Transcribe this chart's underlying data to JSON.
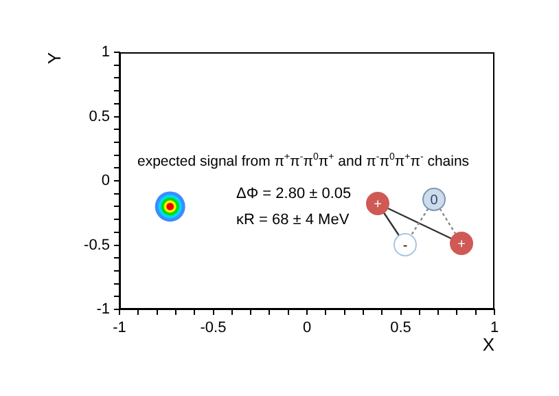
{
  "chart_data": {
    "type": "bubble",
    "xlabel": "X",
    "ylabel": "Y",
    "x": [
      -0.73
    ],
    "series": [
      {
        "color": "#3d8cff",
        "values": [
          -0.2
        ],
        "sizes": [
          1
        ]
      },
      {
        "color": "#00d8ff",
        "values": [
          -0.2
        ],
        "sizes": [
          0.6
        ]
      },
      {
        "color": "#00dd00",
        "values": [
          -0.2
        ],
        "sizes": [
          0.35
        ]
      },
      {
        "color": "#ffee00",
        "values": [
          -0.2
        ],
        "sizes": [
          0.17
        ]
      },
      {
        "color": "#ee0000",
        "values": [
          -0.2
        ],
        "sizes": [
          0.06
        ]
      }
    ],
    "xlim": [
      -1,
      1
    ],
    "ylim": [
      -1,
      1
    ],
    "xticks": [
      -1,
      {
        "value": -0.9,
        "label": null
      },
      {
        "value": -0.8,
        "label": null
      },
      {
        "value": -0.7,
        "label": null
      },
      {
        "value": -0.6,
        "label": null
      },
      -0.5,
      {
        "value": -0.4,
        "label": null
      },
      {
        "value": -0.3,
        "label": null
      },
      {
        "value": -0.2,
        "label": null
      },
      {
        "value": -0.1,
        "label": null
      },
      0,
      {
        "value": 0.1,
        "label": null
      },
      {
        "value": 0.2,
        "label": null
      },
      {
        "value": 0.3,
        "label": null
      },
      {
        "value": 0.4,
        "label": null
      },
      0.5,
      {
        "value": 0.6,
        "label": null
      },
      {
        "value": 0.7,
        "label": null
      },
      {
        "value": 0.8,
        "label": null
      },
      {
        "value": 0.9,
        "label": null
      },
      1
    ],
    "yticks": [
      -1,
      {
        "value": -0.9,
        "label": null
      },
      {
        "value": -0.8,
        "label": null
      },
      {
        "value": -0.7,
        "label": null
      },
      {
        "value": -0.6,
        "label": null
      },
      -0.5,
      {
        "value": -0.4,
        "label": null
      },
      {
        "value": -0.3,
        "label": null
      },
      {
        "value": -0.2,
        "label": null
      },
      {
        "value": -0.1,
        "label": null
      },
      0,
      {
        "value": 0.1,
        "label": null
      },
      {
        "value": 0.2,
        "label": null
      },
      {
        "value": 0.3,
        "label": null
      },
      {
        "value": 0.4,
        "label": null
      },
      0.5,
      {
        "value": 0.6,
        "label": null
      },
      {
        "value": 0.7,
        "label": null
      },
      {
        "value": 0.8,
        "label": null
      },
      {
        "value": 0.9,
        "label": null
      },
      1
    ],
    "grid": false,
    "legend": false,
    "annotations": [
      "expected signal from π$^{+}$π$^{-}$π$^{0}$π$^{+}$ and π$^{-}$π$^{0}$π$^{+}$π$^{-}$ chains",
      "ΔΦ = 2.80 ± 0.05",
      "κR = 68 ± 4 MeV",
      "+",
      "0",
      "-",
      "+"
    ]
  }
}
